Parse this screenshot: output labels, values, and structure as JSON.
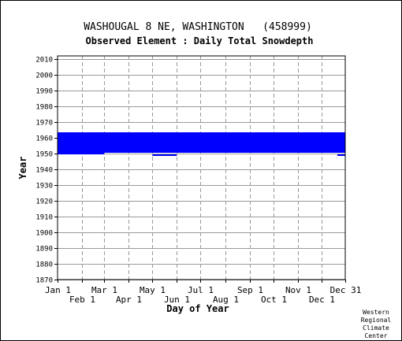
{
  "chart_data": {
    "type": "bar",
    "title": "WASHOUGAL 8 NE, WASHINGTON   (458999)",
    "subtitle": "Observed Element : Daily Total Snowdepth",
    "xlabel": "Day of Year",
    "ylabel": "Year",
    "xlim": [
      1,
      365
    ],
    "ylim": [
      1870,
      2012
    ],
    "y_ticks": [
      1870,
      1880,
      1890,
      1900,
      1910,
      1920,
      1930,
      1940,
      1950,
      1960,
      1970,
      1980,
      1990,
      2000,
      2010
    ],
    "x_ticks_upper": [
      {
        "label": "Jan 1",
        "day": 1
      },
      {
        "label": "Mar 1",
        "day": 60
      },
      {
        "label": "May 1",
        "day": 121
      },
      {
        "label": "Jul 1",
        "day": 182
      },
      {
        "label": "Sep 1",
        "day": 244
      },
      {
        "label": "Nov 1",
        "day": 305
      },
      {
        "label": "Dec 31",
        "day": 365
      }
    ],
    "x_ticks_lower": [
      {
        "label": "Feb 1",
        "day": 32
      },
      {
        "label": "Apr 1",
        "day": 91
      },
      {
        "label": "Jun 1",
        "day": 152
      },
      {
        "label": "Aug 1",
        "day": 213
      },
      {
        "label": "Oct 1",
        "day": 274
      },
      {
        "label": "Dec 1",
        "day": 335
      }
    ],
    "grid": true,
    "series": [
      {
        "color": "#0000ff",
        "ranges": [
          {
            "day_start": 1,
            "day_end": 365,
            "year_start": 1950.5,
            "year_end": 1963.5
          },
          {
            "day_start": 1,
            "day_end": 60,
            "year_start": 1949.5,
            "year_end": 1950.5
          },
          {
            "day_start": 121,
            "day_end": 152,
            "year_start": 1948.5,
            "year_end": 1949.5
          },
          {
            "day_start": 335,
            "day_end": 365,
            "year_start": 1962.5,
            "year_end": 1963.5
          },
          {
            "day_start": 355,
            "day_end": 365,
            "year_start": 1948.5,
            "year_end": 1949.5
          }
        ]
      }
    ],
    "credit": [
      "Western",
      "Regional",
      "Climate",
      "Center"
    ]
  }
}
